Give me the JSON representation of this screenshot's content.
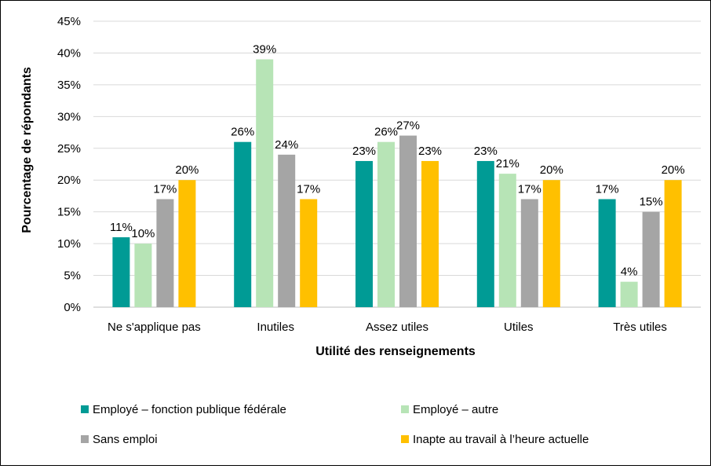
{
  "chart_data": {
    "type": "bar",
    "title": "",
    "xlabel": "Utilité des renseignements",
    "ylabel": "Pourcentage de répondants",
    "ylim": [
      0,
      45
    ],
    "yticks": [
      "0%",
      "5%",
      "10%",
      "15%",
      "20%",
      "25%",
      "30%",
      "35%",
      "40%",
      "45%"
    ],
    "ytick_values": [
      0,
      5,
      10,
      15,
      20,
      25,
      30,
      35,
      40,
      45
    ],
    "grid": true,
    "legend_position": "bottom",
    "categories": [
      "Ne s'applique pas",
      "Inutiles",
      "Assez utiles",
      "Utiles",
      "Très utiles"
    ],
    "series": [
      {
        "name": "Employé – fonction publique fédérale",
        "color": "#009B95",
        "values": [
          11,
          26,
          23,
          23,
          17
        ],
        "labels": [
          "11%",
          "26%",
          "23%",
          "23%",
          "17%"
        ]
      },
      {
        "name": "Employé – autre",
        "color": "#B7E4B6",
        "values": [
          10,
          39,
          26,
          21,
          4
        ],
        "labels": [
          "10%",
          "39%",
          "26%",
          "21%",
          "4%"
        ]
      },
      {
        "name": "Sans emploi",
        "color": "#A5A5A5",
        "values": [
          17,
          24,
          27,
          17,
          15
        ],
        "labels": [
          "17%",
          "24%",
          "27%",
          "17%",
          "15%"
        ]
      },
      {
        "name": "Inapte au travail à l’heure actuelle",
        "color": "#FFC000",
        "values": [
          20,
          17,
          23,
          20,
          20
        ],
        "labels": [
          "20%",
          "17%",
          "23%",
          "20%",
          "20%"
        ]
      }
    ]
  }
}
